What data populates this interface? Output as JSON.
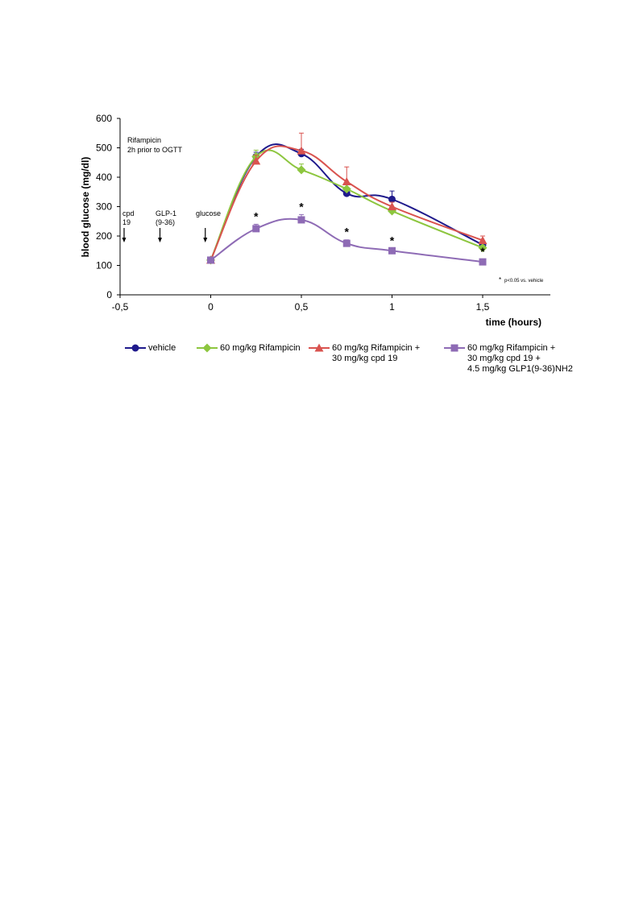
{
  "chart_data": {
    "type": "line",
    "xlabel": "time (hours)",
    "ylabel": "blood glucose (mg/dl)",
    "xlim": [
      -0.5,
      1.85
    ],
    "ylim": [
      0,
      600
    ],
    "x_ticks": [
      -0.5,
      0,
      0.5,
      1,
      1.5
    ],
    "x_tick_labels": [
      "-0,5",
      "0",
      "0,5",
      "1",
      "1,5"
    ],
    "y_ticks": [
      0,
      100,
      200,
      300,
      400,
      500,
      600
    ],
    "y_tick_labels": [
      "0",
      "100",
      "200",
      "300",
      "400",
      "500",
      "600"
    ],
    "grid": false,
    "legend_position": "bottom",
    "x": [
      0,
      0.25,
      0.5,
      0.75,
      1,
      1.5
    ],
    "series": [
      {
        "name": "vehicle",
        "color": "#1f1a8c",
        "marker": "circle",
        "values": [
          118,
          470,
          480,
          345,
          325,
          170
        ],
        "errors": [
          6,
          15,
          15,
          12,
          28,
          12
        ]
      },
      {
        "name": "60 mg/kg Rifampicin",
        "color": "#8dc63f",
        "marker": "diamond",
        "values": [
          118,
          470,
          425,
          360,
          285,
          160
        ],
        "errors": [
          6,
          22,
          20,
          15,
          10,
          8
        ]
      },
      {
        "name": "60 mg/kg Rifampicin +\n30 mg/kg cpd 19",
        "color": "#d9534f",
        "marker": "triangle",
        "values": [
          118,
          455,
          490,
          385,
          300,
          185
        ],
        "errors": [
          6,
          20,
          60,
          50,
          15,
          15
        ]
      },
      {
        "name": "60 mg/kg Rifampicin +\n30 mg/kg cpd 19 +\n4.5 mg/kg GLP1(9-36)NH2",
        "color": "#8e6bb5",
        "marker": "square",
        "values": [
          118,
          225,
          255,
          175,
          150,
          112
        ],
        "errors": [
          6,
          15,
          18,
          12,
          8,
          8
        ]
      }
    ],
    "significance": {
      "symbol": "*",
      "x": [
        0.25,
        0.5,
        0.75,
        1,
        1.5
      ],
      "note_star": "*",
      "note_text": "p<0.05  vs. vehicle"
    },
    "annotations": {
      "rifampicin": [
        "Rifampicin",
        "2h prior to OGTT"
      ],
      "cpd19": {
        "x": -0.5,
        "lines": [
          "cpd",
          "19"
        ]
      },
      "glp1": {
        "x": -0.28,
        "lines": [
          "GLP-1",
          "(9-36)"
        ]
      },
      "glucose": {
        "x": -0.03,
        "lines": [
          "glucose"
        ]
      }
    }
  }
}
